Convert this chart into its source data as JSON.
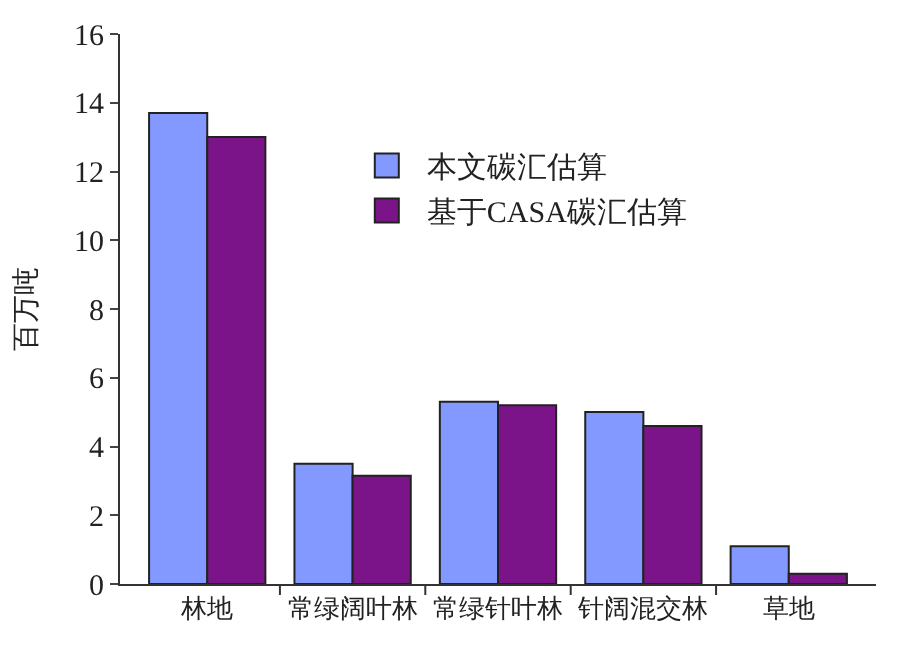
{
  "chart_data": {
    "type": "bar",
    "ylabel": "百万吨",
    "categories": [
      "林地",
      "常绿阔叶林",
      "常绿针叶林",
      "针阔混交林",
      "草地"
    ],
    "series": [
      {
        "name": "本文碳汇估算",
        "color": "#8499ff",
        "values": [
          13.7,
          3.5,
          5.3,
          5.0,
          1.1
        ]
      },
      {
        "name": "基于CASA碳汇估算",
        "color": "#7a1488",
        "values": [
          13.0,
          3.15,
          5.2,
          4.6,
          0.3
        ]
      }
    ],
    "ylim": [
      0,
      16
    ],
    "yticks": [
      0,
      2,
      4,
      6,
      8,
      10,
      12,
      14,
      16
    ],
    "legend": "top right"
  }
}
